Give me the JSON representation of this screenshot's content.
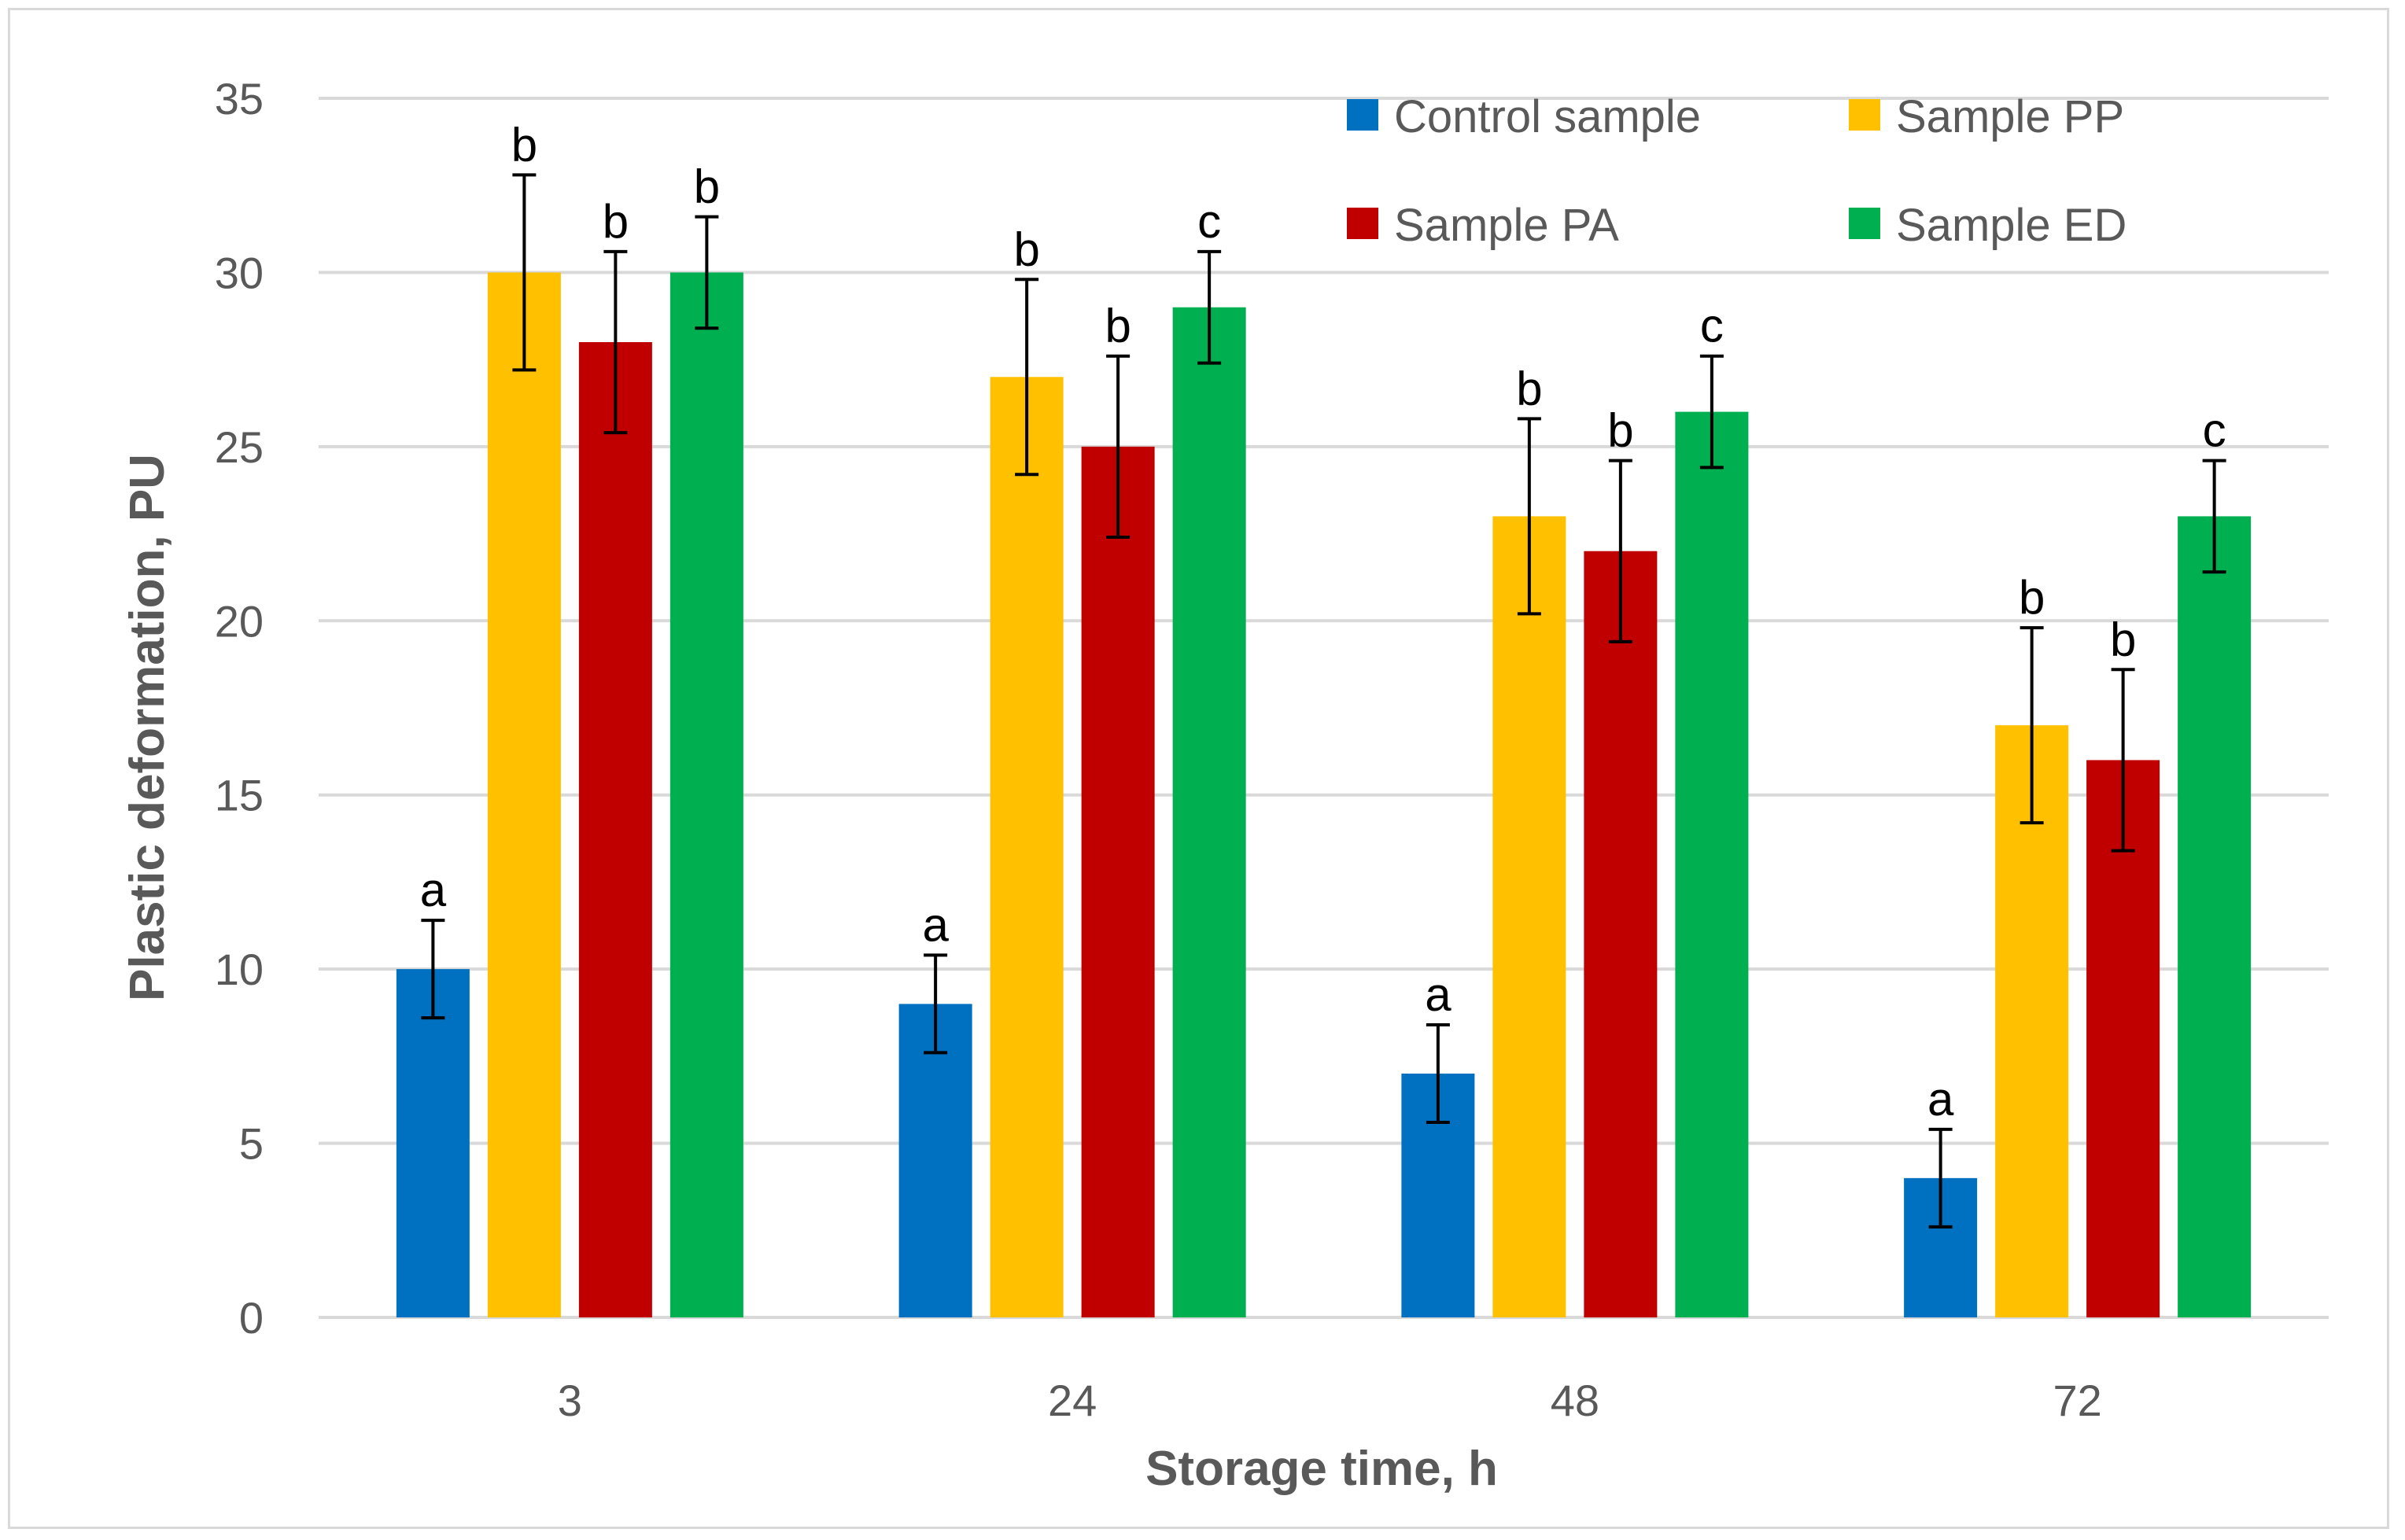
{
  "chart_data": {
    "type": "bar",
    "title": "",
    "xlabel": "Storage time, h",
    "ylabel": "Plastic deformation, PU",
    "ylim": [
      0,
      35
    ],
    "yticks": [
      0,
      5,
      10,
      15,
      20,
      25,
      30,
      35
    ],
    "grid": true,
    "legend_position": "top-right",
    "categories": [
      "3",
      "24",
      "48",
      "72"
    ],
    "series": [
      {
        "name": "Control sample",
        "color": "#0070c0",
        "values": [
          10,
          9,
          7,
          4
        ],
        "error": [
          1.4,
          1.4,
          1.4,
          1.4
        ],
        "letters": [
          "a",
          "a",
          "a",
          "a"
        ]
      },
      {
        "name": "Sample PP",
        "color": "#ffc000",
        "values": [
          30,
          27,
          23,
          17
        ],
        "error": [
          2.8,
          2.8,
          2.8,
          2.8
        ],
        "letters": [
          "b",
          "b",
          "b",
          "b"
        ]
      },
      {
        "name": "Sample PA",
        "color": "#c00000",
        "values": [
          28,
          25,
          22,
          16
        ],
        "error": [
          2.6,
          2.6,
          2.6,
          2.6
        ],
        "letters": [
          "b",
          "b",
          "b",
          "b"
        ]
      },
      {
        "name": "Sample ED",
        "color": "#00b050",
        "values": [
          30,
          29,
          26,
          23
        ],
        "error": [
          1.6,
          1.6,
          1.6,
          1.6
        ],
        "letters": [
          "b",
          "c",
          "c",
          "c"
        ]
      }
    ]
  }
}
